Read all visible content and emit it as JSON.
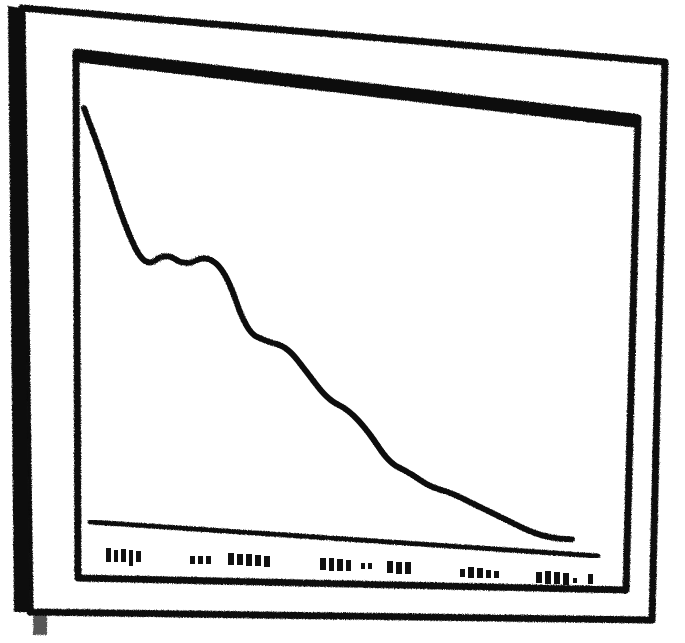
{
  "colors": {
    "ink": "#111111",
    "paper": "#ffffff",
    "shadow": "#3a3a3a"
  },
  "chart_data": {
    "type": "line",
    "title": "",
    "xlabel": "",
    "ylabel": "",
    "x_tick_labels": [
      " ",
      " ",
      " ",
      " ",
      " "
    ],
    "grid": false,
    "legend": "none",
    "xlim": [
      0,
      24
    ],
    "ylim": [
      0,
      100
    ],
    "x": [
      0,
      1,
      2,
      3,
      4,
      5,
      6,
      7,
      8,
      9,
      10,
      11,
      12,
      13,
      14,
      15,
      16,
      17,
      18,
      19,
      20,
      21,
      22,
      23,
      24
    ],
    "values": [
      98,
      85,
      70,
      60,
      64,
      61,
      64,
      60,
      46,
      44,
      43,
      37,
      31,
      29,
      24,
      17,
      15,
      12,
      11,
      9,
      7,
      5,
      3,
      2,
      2
    ]
  }
}
